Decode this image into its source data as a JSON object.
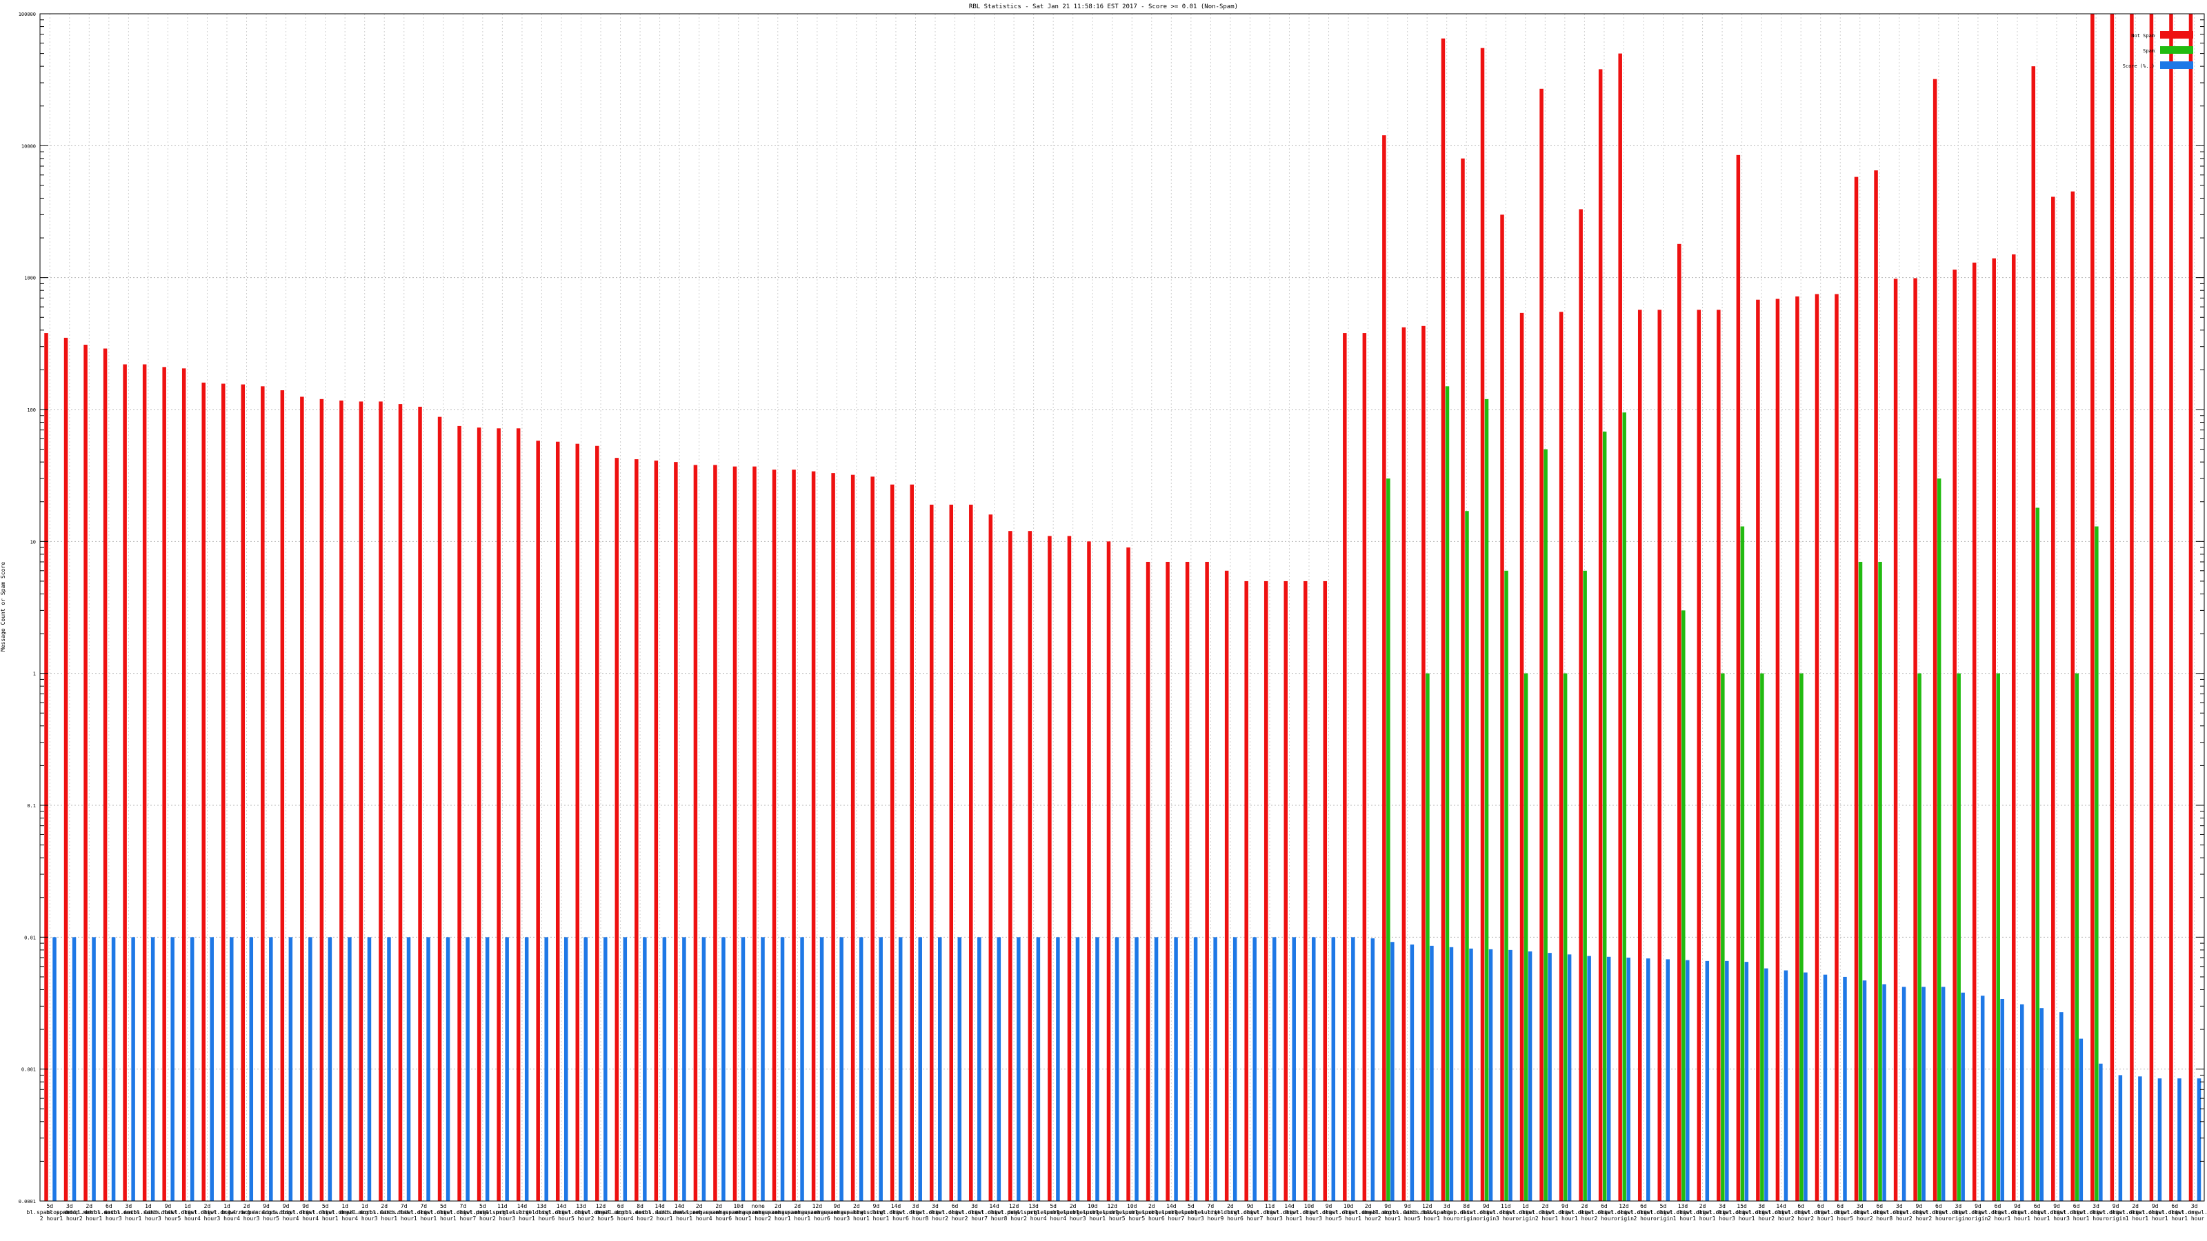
{
  "chart_data": {
    "type": "bar",
    "title": "RBL Statistics - Sat Jan 21 11:58:16 EST 2017 - Score >= 0.01 (Non-Spam)",
    "xlabel": "",
    "ylabel": "Message Count or Spam Score",
    "yscale": "log",
    "ylim": [
      0.0001,
      100000
    ],
    "y_tick_labels": [
      "100000",
      "10000",
      "1000",
      "100",
      "10",
      "1",
      "0.1",
      "0.01",
      "0.001",
      "0.0001"
    ],
    "grid": true,
    "legend_position": "top-right",
    "colors": {
      "Not Spam": "#ee1111",
      "Spam": "#22bb11",
      "Score (%..)": "#1e78e6"
    },
    "categories": [
      "5d bl.spamcop.net 2 hour",
      "3d bl.spamcop.net 1 hour",
      "2d dnsbl.sorbs.net 2 hour",
      "6d dnsbl.sorbs.net 1 hour",
      "3d dnsbl.sorbs.net 3 hour",
      "1d dnsbl.sorbs.net 1 hour",
      "9d list.dnswl.org 3 hour",
      "1d list.dnswl.org 5 hour",
      "2d list.dnswl.org 4 hour",
      "1d list.dnswl.org 3 hour",
      "2d b.barracuda.org 4 hour",
      "9d b.barracuda.org 3 hour",
      "9d list.dnswl.org 5 hour",
      "9d list.dnswl.org 4 hour",
      "5d list.dnswl.org 4 hour",
      "1d list.dnswl.org 1 hour",
      "1d dnsbl.sorbs.net 4 hour",
      "2d dnsbl.sorbs.net 3 hour",
      "7d list.dnswl.org 1 hour",
      "7d list.dnswl.org 1 hour",
      "5d list.dnswl.org 1 hour",
      "7d list.dnswl.org 1 hour",
      "5d list.dnswl.org 7 hour",
      "11d psbl.surriel.org 2 hour",
      "14d psbl.surriel.org 3 hour",
      "13d list.dnswl.org 1 hour",
      "14d list.dnswl.org 6 hour",
      "13d list.dnswl.org 5 hour",
      "12d list.dnswl.org 2 hour",
      "6d dnsbl.sorbs.net 5 hour",
      "8d dnsbl.sorbs.net 4 hour",
      "14d dnsbl.sorbs.net 2 hour",
      "14d list.dnswl.org 1 hour",
      "2d zen.spamhaus.org 1 hour",
      "2d zen.spamhaus.org 4 hour",
      "10d zen.spamhaus.org 6 hour",
      "none zen.spamhaus.org 1 hour",
      "2d zen.spamhaus.org 2 hour",
      "2d zen.spamhaus.org 1 hour",
      "12d zen.spamhaus.org 1 hour",
      "9d zen.spamhaus.org 6 hour",
      "2d zen.spamhaus.org 3 hour",
      "9d list.dnswl.org 1 hour",
      "14d list.dnswl.org 1 hour",
      "3d list.dnswl.org 6 hour",
      "3d list.dnswl.org 8 hour",
      "6d list.dnswl.org 2 hour",
      "3d list.dnswl.org 2 hour",
      "14d list.dnswl.org 7 hour",
      "12d list.dnswl.org 8 hour",
      "13d psbl.surriel.org 2 hour",
      "5d psbl.surriel.org 4 hour",
      "2d psbl.surriel.org 4 hour",
      "10d psbl.surriel.org 3 hour",
      "12d psbl.surriel.org 1 hour",
      "10d psbl.surriel.org 5 hour",
      "2d psbl.surriel.org 5 hour",
      "14d psbl.surriel.org 6 hour",
      "5d psbl.surriel.org 7 hour",
      "7d psbl.surriel.org 3 hour",
      "2d list.dnswl.org 9 hour",
      "9d list.dnswl.org 6 hour",
      "11d list.dnswl.org 7 hour",
      "14d list.dnswl.org 3 hour",
      "10d list.dnswl.org 1 hour",
      "9d list.dnswl.org 3 hour",
      "10d list.dnswl.org 5 hour",
      "2d list.dnswl.org 1 hour",
      "9d dnsbl.sorbs.net 2 hour",
      "9d dnsbl.sorbs.net 1 hour",
      "12d list.dnswl.org 5 hour",
      "3d bl.spamcop.net 1 hour",
      "8d list.dnswl.org origin",
      "9d list.dnswl.org origin",
      "11d list.dnswl.org 3 hour",
      "1d list.dnswl.org origin",
      "2d list.dnswl.org 2 hour",
      "9d list.dnswl.org 1 hour",
      "2d list.dnswl.org 1 hour",
      "6d list.dnswl.org 2 hour",
      "12d list.dnswl.org origin",
      "6d list.dnswl.org 2 hour",
      "5d list.dnswl.org origin",
      "13d list.dnswl.org 1 hour",
      "2d list.dnswl.org 1 hour",
      "3d list.dnswl.org 1 hour",
      "15d list.dnswl.org 3 hour",
      "3d list.dnswl.org 1 hour",
      "14d list.dnswl.org 2 hour",
      "6d list.dnswl.org 2 hour",
      "6d list.dnswl.org 2 hour",
      "6d list.dnswl.org 1 hour",
      "3d list.dnswl.org 5 hour",
      "6d list.dnswl.org 2 hour",
      "3d list.dnswl.org 8 hour",
      "9d list.dnswl.org 2 hour",
      "6d list.dnswl.org 2 hour",
      "3d list.dnswl.org origin",
      "9d list.dnswl.org origin",
      "6d list.dnswl.org 2 hour",
      "9d list.dnswl.org 1 hour",
      "6d list.dnswl.org 1 hour",
      "9d list.dnswl.org 1 hour",
      "6d list.dnswl.org 3 hour",
      "3d list.dnswl.org 1 hour",
      "9d list.dnswl.org origin",
      "2d list.dnswl.org 1 hour",
      "9d list.dnswl.org 1 hour",
      "6d list.dnswl.org 1 hour",
      "3d list.dnswl.org 1 hour"
    ],
    "series": [
      {
        "name": "Not Spam",
        "values": [
          380,
          350,
          310,
          290,
          220,
          220,
          210,
          205,
          160,
          157,
          155,
          150,
          140,
          125,
          120,
          117,
          115,
          115,
          110,
          105,
          88,
          75,
          73,
          72,
          72,
          58,
          57,
          55,
          53,
          43,
          42,
          41,
          40,
          38,
          38,
          37,
          37,
          35,
          35,
          34,
          33,
          32,
          31,
          27,
          27,
          19,
          19,
          19,
          16,
          12,
          12,
          11,
          11,
          10,
          10,
          9,
          7,
          7,
          7,
          7,
          6,
          5,
          5,
          5,
          5,
          5,
          380,
          380,
          12000,
          420,
          430,
          65000,
          8000,
          55000,
          3000,
          540,
          27000,
          550,
          3300,
          38000,
          50000,
          570,
          570,
          1800,
          570,
          570,
          8500,
          680,
          690,
          720,
          750,
          750,
          5800,
          6500,
          980,
          990,
          32000,
          1150,
          1300,
          1400,
          1500,
          40000,
          4100,
          4500,
          100000,
          100000,
          100000,
          100000,
          100000,
          100000
        ]
      },
      {
        "name": "Spam",
        "values": [
          0,
          0,
          0,
          0,
          0,
          0,
          0,
          0,
          0,
          0,
          0,
          0,
          0,
          0,
          0,
          0,
          0,
          0,
          0,
          0,
          0,
          0,
          0,
          0,
          0,
          0,
          0,
          0,
          0,
          0,
          0,
          0,
          0,
          0,
          0,
          0,
          0,
          0,
          0,
          0,
          0,
          0,
          0,
          0,
          0,
          0,
          0,
          0,
          0,
          0,
          0,
          0,
          0,
          0,
          0,
          0,
          0,
          0,
          0,
          0,
          0,
          0,
          0,
          0,
          0,
          0,
          0,
          0,
          30,
          0,
          1,
          150,
          17,
          120,
          6,
          1,
          50,
          1,
          6,
          68,
          95,
          0,
          0,
          3,
          0,
          1,
          13,
          1,
          0,
          1,
          0,
          0,
          7,
          7,
          0,
          1,
          30,
          1,
          0,
          1,
          0,
          18,
          0,
          1,
          13,
          0,
          0,
          0,
          0,
          0
        ]
      },
      {
        "name": "Score (%..)",
        "values": [
          0.01,
          0.01,
          0.01,
          0.01,
          0.01,
          0.01,
          0.01,
          0.01,
          0.01,
          0.01,
          0.01,
          0.01,
          0.01,
          0.01,
          0.01,
          0.01,
          0.01,
          0.01,
          0.01,
          0.01,
          0.01,
          0.01,
          0.01,
          0.01,
          0.01,
          0.01,
          0.01,
          0.01,
          0.01,
          0.01,
          0.01,
          0.01,
          0.01,
          0.01,
          0.01,
          0.01,
          0.01,
          0.01,
          0.01,
          0.01,
          0.01,
          0.01,
          0.01,
          0.01,
          0.01,
          0.01,
          0.01,
          0.01,
          0.01,
          0.01,
          0.01,
          0.01,
          0.01,
          0.01,
          0.01,
          0.01,
          0.01,
          0.01,
          0.01,
          0.01,
          0.01,
          0.01,
          0.01,
          0.01,
          0.01,
          0.01,
          0.01,
          0.0098,
          0.0092,
          0.0088,
          0.0086,
          0.0084,
          0.0082,
          0.0081,
          0.008,
          0.0078,
          0.0076,
          0.0074,
          0.0072,
          0.0071,
          0.007,
          0.0069,
          0.0068,
          0.0067,
          0.0066,
          0.0066,
          0.0065,
          0.0058,
          0.0056,
          0.0054,
          0.0052,
          0.005,
          0.0047,
          0.0044,
          0.0042,
          0.0042,
          0.0042,
          0.0038,
          0.0036,
          0.0034,
          0.0031,
          0.0029,
          0.0027,
          0.0017,
          0.0011,
          0.0009,
          0.00088,
          0.00085,
          0.00085,
          0.00085
        ]
      }
    ]
  }
}
